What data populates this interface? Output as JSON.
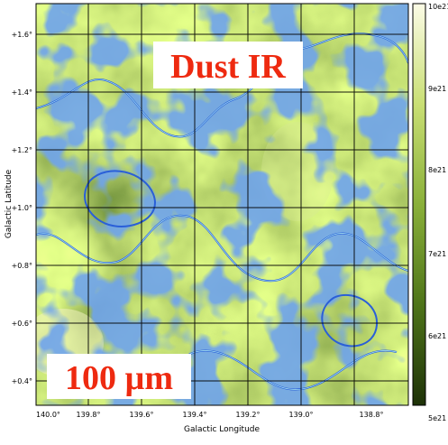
{
  "panel": {
    "title_label": "Dust IR",
    "band_label": "100 µm",
    "x_axis_label": "Galactic Longitude",
    "y_axis_label": "Galactic Latitude",
    "x_ticks": [
      "140.0°",
      "139.8°",
      "139.6°",
      "139.4°",
      "139.2°",
      "139.0°",
      "138.8°"
    ],
    "y_ticks": [
      "+1.6°",
      "+1.4°",
      "+1.2°",
      "+1.0°",
      "+0.8°",
      "+0.6°",
      "+0.4°"
    ],
    "colorbar_ticks": [
      "10e21",
      "9e21",
      "8e21",
      "7e21",
      "6e21",
      "5e21"
    ]
  },
  "colors": {
    "map_dark": "#2f4a12",
    "map_mid": "#6f9a2e",
    "map_light": "#c6dc7a",
    "map_highlight": "#f4f4c8",
    "contour_outer": "#2a5fd8",
    "contour_inner": "#9fdcf0",
    "label_red": "#ee2a10",
    "grid": "#000000"
  }
}
